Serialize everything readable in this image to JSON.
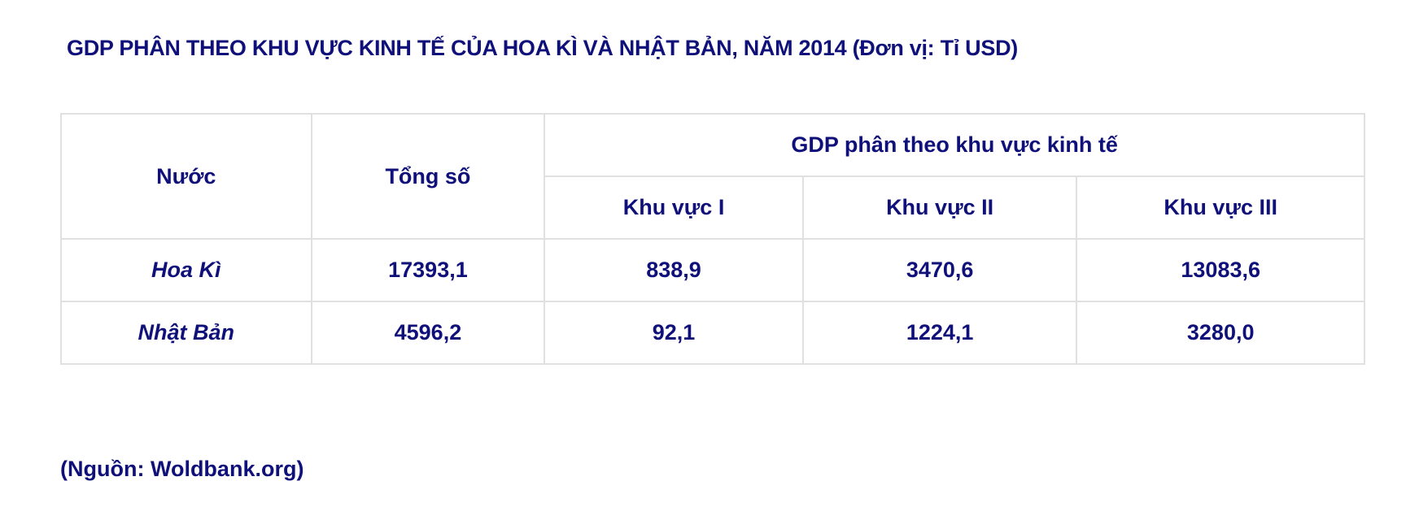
{
  "title": "GDP PHÂN THEO KHU VỰC KINH TẾ CỦA HOA KÌ VÀ NHẬT BẢN, NĂM 2014 (Đơn vị: Tỉ USD)",
  "table": {
    "headers": {
      "country": "Nước",
      "total": "Tổng số",
      "group": "GDP phân theo khu vực kinh tế",
      "sectors": [
        "Khu vực I",
        "Khu vực II",
        "Khu vực III"
      ]
    },
    "rows": [
      {
        "country": "Hoa Kì",
        "total": "17393,1",
        "s1": "838,9",
        "s2": "3470,6",
        "s3": "13083,6"
      },
      {
        "country": "Nhật Bản",
        "total": "4596,2",
        "s1": "92,1",
        "s2": "1224,1",
        "s3": "3280,0"
      }
    ]
  },
  "source": "(Nguồn: Woldbank.org)",
  "colors": {
    "text": "#10107a",
    "border": "#e0e0e0"
  }
}
